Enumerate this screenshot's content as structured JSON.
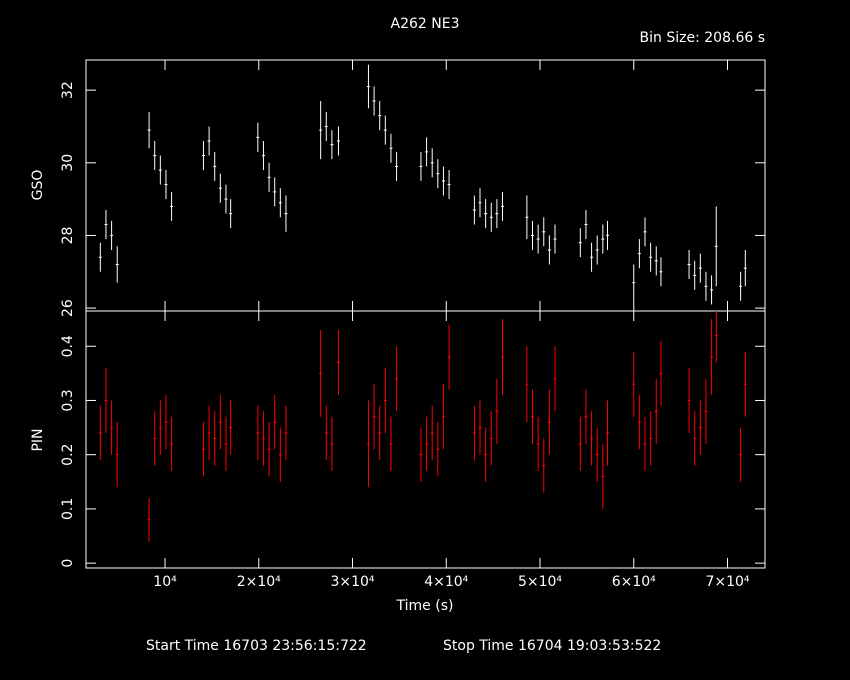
{
  "chart_data": [
    {
      "type": "scatter",
      "title": "A262 NE3",
      "subtitle": "Bin Size: 208.66 s",
      "ylabel": "GSO",
      "x": [
        3100,
        3700,
        4300,
        4900,
        8300,
        8900,
        9500,
        10100,
        10700,
        14100,
        14700,
        15300,
        15900,
        16500,
        17000,
        19900,
        20500,
        21100,
        21700,
        22300,
        22900,
        26600,
        27200,
        27800,
        28500,
        31700,
        32300,
        32900,
        33500,
        34100,
        34700,
        37300,
        37900,
        38500,
        39100,
        39700,
        40300,
        43000,
        43600,
        44200,
        44800,
        45400,
        46000,
        48600,
        49200,
        49800,
        50400,
        51000,
        51600,
        54300,
        54900,
        55500,
        56100,
        56700,
        57200,
        60000,
        60600,
        61200,
        61800,
        62400,
        62900,
        65900,
        66500,
        67100,
        67700,
        68300,
        68800,
        71400,
        71900
      ],
      "series": [
        {
          "color": "#ffffff",
          "values": [
            27.4,
            28.3,
            28.0,
            27.2,
            30.9,
            30.2,
            29.8,
            29.4,
            28.8,
            30.2,
            30.6,
            29.9,
            29.3,
            29.0,
            28.6,
            30.7,
            30.2,
            29.6,
            29.2,
            28.9,
            28.6,
            30.9,
            31.0,
            30.5,
            30.6,
            32.1,
            31.7,
            31.3,
            30.9,
            30.4,
            29.9,
            29.9,
            30.3,
            30.0,
            29.7,
            29.5,
            29.4,
            28.7,
            28.9,
            28.6,
            28.5,
            28.6,
            28.8,
            28.5,
            28.0,
            27.9,
            28.1,
            27.6,
            27.9,
            27.8,
            28.3,
            27.4,
            27.6,
            27.9,
            28.0,
            26.7,
            27.5,
            28.1,
            27.4,
            27.3,
            27.0,
            27.2,
            26.9,
            27.1,
            26.6,
            26.5,
            27.7,
            26.6,
            27.1
          ],
          "errors": [
            0.4,
            0.4,
            0.4,
            0.5,
            0.5,
            0.4,
            0.4,
            0.4,
            0.4,
            0.4,
            0.4,
            0.4,
            0.4,
            0.4,
            0.4,
            0.4,
            0.4,
            0.4,
            0.4,
            0.4,
            0.5,
            0.8,
            0.4,
            0.4,
            0.4,
            0.6,
            0.4,
            0.4,
            0.4,
            0.4,
            0.4,
            0.4,
            0.4,
            0.4,
            0.4,
            0.4,
            0.4,
            0.4,
            0.4,
            0.4,
            0.4,
            0.4,
            0.4,
            0.6,
            0.4,
            0.4,
            0.4,
            0.4,
            0.4,
            0.4,
            0.4,
            0.4,
            0.4,
            0.4,
            0.4,
            0.5,
            0.4,
            0.4,
            0.4,
            0.4,
            0.4,
            0.4,
            0.4,
            0.4,
            0.4,
            0.4,
            1.1,
            0.4,
            0.5
          ]
        }
      ],
      "xlim": [
        1570,
        74000
      ],
      "ylim": [
        25.92,
        32.83
      ],
      "yticks": [
        26,
        28,
        30,
        32
      ]
    },
    {
      "type": "scatter",
      "xlabel": "Time (s)",
      "ylabel": "PIN",
      "x": [
        3100,
        3700,
        4300,
        4900,
        8300,
        8900,
        9500,
        10100,
        10700,
        14100,
        14700,
        15300,
        15900,
        16500,
        17000,
        19900,
        20500,
        21100,
        21700,
        22300,
        22900,
        26600,
        27200,
        27800,
        28500,
        31700,
        32300,
        32900,
        33500,
        34100,
        34700,
        37300,
        37900,
        38500,
        39100,
        39700,
        40300,
        43000,
        43600,
        44200,
        44800,
        45400,
        46000,
        48600,
        49200,
        49800,
        50400,
        51000,
        51600,
        54300,
        54900,
        55500,
        56100,
        56700,
        57200,
        60000,
        60600,
        61200,
        61800,
        62400,
        62900,
        65900,
        66500,
        67100,
        67700,
        68300,
        68800,
        71400,
        71900
      ],
      "series": [
        {
          "color": "#ff0000",
          "values": [
            0.24,
            0.3,
            0.25,
            0.2,
            0.08,
            0.23,
            0.25,
            0.26,
            0.22,
            0.21,
            0.24,
            0.23,
            0.26,
            0.22,
            0.25,
            0.24,
            0.23,
            0.21,
            0.26,
            0.2,
            0.24,
            0.35,
            0.24,
            0.22,
            0.37,
            0.22,
            0.27,
            0.24,
            0.3,
            0.22,
            0.34,
            0.2,
            0.22,
            0.24,
            0.21,
            0.27,
            0.38,
            0.24,
            0.25,
            0.2,
            0.23,
            0.28,
            0.38,
            0.33,
            0.27,
            0.22,
            0.18,
            0.26,
            0.34,
            0.22,
            0.27,
            0.23,
            0.2,
            0.16,
            0.24,
            0.33,
            0.26,
            0.22,
            0.23,
            0.28,
            0.35,
            0.3,
            0.23,
            0.25,
            0.28,
            0.38,
            0.42,
            0.2,
            0.33
          ],
          "errors": [
            0.05,
            0.06,
            0.05,
            0.06,
            0.04,
            0.05,
            0.05,
            0.05,
            0.05,
            0.05,
            0.05,
            0.05,
            0.05,
            0.05,
            0.05,
            0.05,
            0.05,
            0.05,
            0.05,
            0.05,
            0.05,
            0.08,
            0.05,
            0.05,
            0.06,
            0.08,
            0.06,
            0.05,
            0.06,
            0.05,
            0.06,
            0.05,
            0.05,
            0.05,
            0.05,
            0.06,
            0.06,
            0.05,
            0.05,
            0.05,
            0.05,
            0.06,
            0.07,
            0.07,
            0.05,
            0.05,
            0.05,
            0.06,
            0.06,
            0.05,
            0.05,
            0.05,
            0.05,
            0.06,
            0.06,
            0.06,
            0.05,
            0.05,
            0.05,
            0.06,
            0.06,
            0.06,
            0.05,
            0.05,
            0.06,
            0.07,
            0.05,
            0.05,
            0.06
          ]
        }
      ],
      "xlim": [
        1570,
        74000
      ],
      "ylim": [
        -0.009,
        0.465
      ],
      "yticks": [
        0,
        0.1,
        0.2,
        0.3,
        0.4
      ],
      "xticks": [
        {
          "value": 10000,
          "label": "10⁴"
        },
        {
          "value": 20000,
          "label": "2×10⁴"
        },
        {
          "value": 30000,
          "label": "3×10⁴"
        },
        {
          "value": 40000,
          "label": "4×10⁴"
        },
        {
          "value": 50000,
          "label": "5×10⁴"
        },
        {
          "value": 60000,
          "label": "6×10⁴"
        },
        {
          "value": 70000,
          "label": "7×10⁴"
        }
      ]
    }
  ],
  "footer": {
    "start_time": "Start Time 16703 23:56:15:722",
    "stop_time": "Stop Time 16704 19:03:53:522"
  }
}
